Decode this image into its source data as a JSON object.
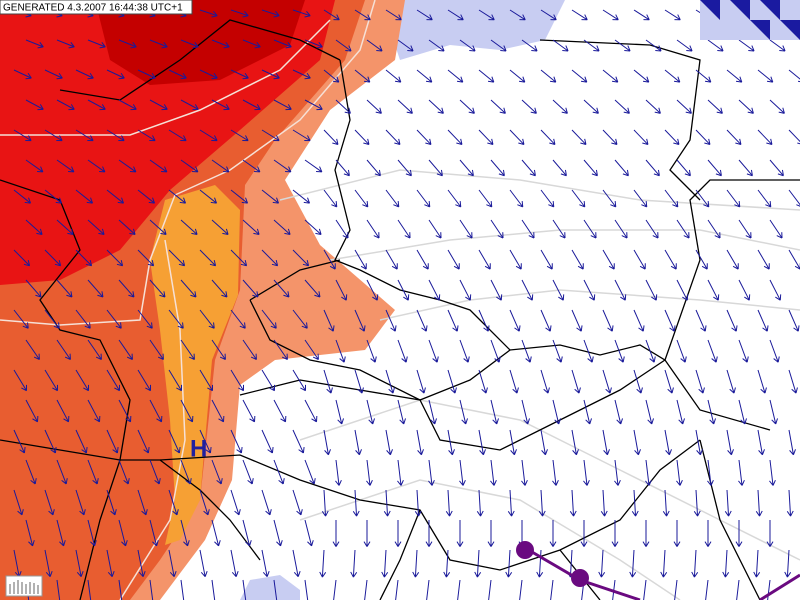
{
  "header": {
    "generated": "GENERATED 4.3.2007 16:44:38 UTC+1"
  },
  "labels": {
    "high": "H"
  }
}
